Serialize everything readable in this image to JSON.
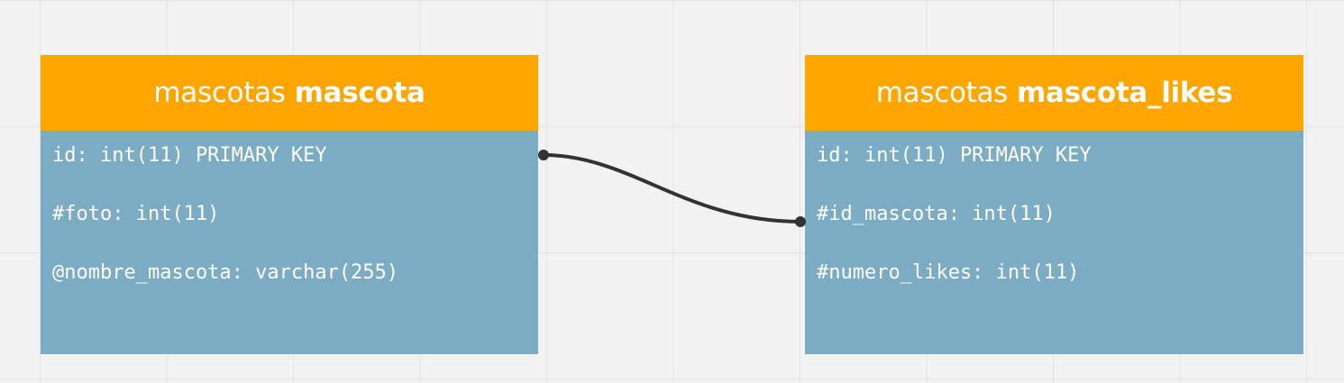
{
  "tables": [
    {
      "schema": "mascotas",
      "name": "mascota",
      "fields": [
        "id: int(11) PRIMARY KEY",
        "#foto: int(11)",
        "@nombre_mascota: varchar(255)"
      ]
    },
    {
      "schema": "mascotas",
      "name": "mascota_likes",
      "fields": [
        "id: int(11) PRIMARY KEY",
        "#id_mascota: int(11)",
        "#numero_likes: int(11)"
      ]
    }
  ],
  "colors": {
    "background": "#f2f2f2",
    "grid": "#e3e3e3",
    "header": "#ffa500",
    "body": "#7bacc3",
    "text": "#ffffff",
    "connector": "#333333"
  },
  "relation": {
    "from": "mascota.id",
    "to": "mascota_likes.id_mascota"
  }
}
